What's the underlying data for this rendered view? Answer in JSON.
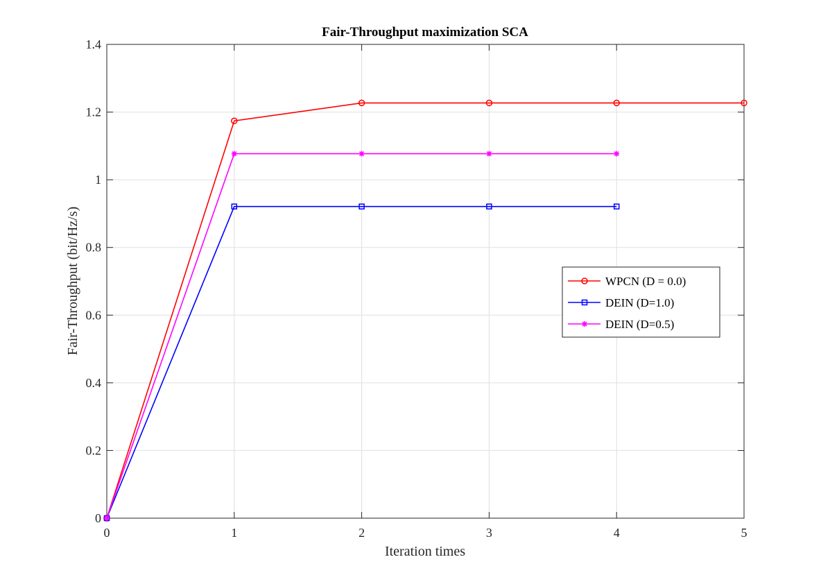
{
  "chart_data": {
    "type": "line",
    "title": "Fair-Throughput maximization SCA",
    "xlabel": "Iteration times",
    "ylabel": "Fair-Throughput (bit/Hz/s)",
    "xlim": [
      0,
      5
    ],
    "ylim": [
      0,
      1.4
    ],
    "xticks": [
      "0",
      "1",
      "2",
      "3",
      "4",
      "5"
    ],
    "yticks": [
      "0",
      "0.2",
      "0.4",
      "0.6",
      "0.8",
      "1",
      "1.2",
      "1.4"
    ],
    "grid": true,
    "legend_position": "right",
    "series": [
      {
        "name": "WPCN (D = 0.0)",
        "color": "#ff0000",
        "marker": "circle",
        "x": [
          0,
          1,
          2,
          3,
          4,
          5
        ],
        "y": [
          0,
          1.174,
          1.227,
          1.227,
          1.227,
          1.227
        ]
      },
      {
        "name": "DEIN (D=1.0)",
        "color": "#0000ff",
        "marker": "square",
        "x": [
          0,
          1,
          2,
          3,
          4
        ],
        "y": [
          0,
          0.921,
          0.921,
          0.921,
          0.921
        ]
      },
      {
        "name": "DEIN (D=0.5)",
        "color": "#ff00ff",
        "marker": "asterisk",
        "x": [
          0,
          1,
          2,
          3,
          4
        ],
        "y": [
          0,
          1.077,
          1.077,
          1.077,
          1.077
        ]
      }
    ]
  }
}
